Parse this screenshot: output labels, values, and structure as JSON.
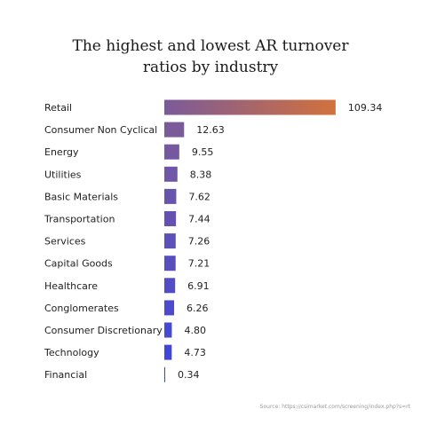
{
  "chart_data": {
    "type": "bar",
    "orientation": "horizontal",
    "title_line1": "The highest and lowest AR turnover",
    "title_line2": "ratios by industry",
    "categories": [
      "Retail",
      "Consumer Non Cyclical",
      "Energy",
      "Utilities",
      "Basic Materials",
      "Transportation",
      "Services",
      "Capital Goods",
      "Healthcare",
      "Conglomerates",
      "Consumer Discretionary",
      "Technology",
      "Financial"
    ],
    "values": [
      109.34,
      12.63,
      9.55,
      8.38,
      7.62,
      7.44,
      7.26,
      7.21,
      6.91,
      6.26,
      4.8,
      4.73,
      0.34
    ],
    "value_labels": [
      "109.34",
      "12.63",
      "9.55",
      "8.38",
      "7.62",
      "7.44",
      "7.26",
      "7.21",
      "6.91",
      "6.26",
      "4.80",
      "4.73",
      "0.34"
    ],
    "xlim": [
      0,
      110
    ],
    "grid": false,
    "legend": "none",
    "colors": {
      "gradient_start": "#d2713c",
      "gradient_mid": "#7b5a9a",
      "gradient_end": "#3a45dd"
    },
    "source": "Source: https://csimarket.com/screening/index.php?s=rt"
  }
}
